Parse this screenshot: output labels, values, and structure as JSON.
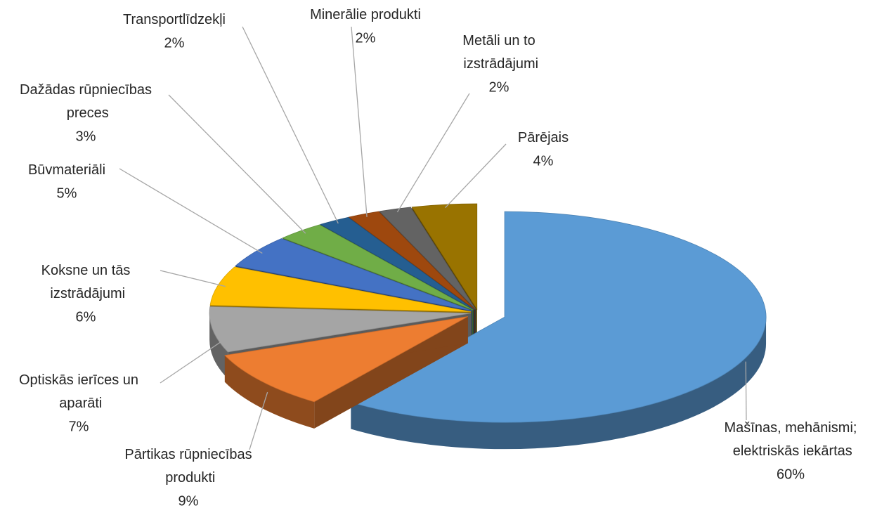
{
  "chart_data": {
    "type": "pie3d",
    "categories": [
      "Mašīnas, mehānismi; elektriskās iekārtas",
      "Pārtikas rūpniecības produkti",
      "Optiskās ierīces un aparāti",
      "Koksne un tās izstrādājumi",
      "Būvmateriāli",
      "Dažādas rūpniecības preces",
      "Transportlīdzekļi",
      "Minerālie produkti",
      "Metāli un to izstrādājumi",
      "Pārējais"
    ],
    "values": [
      60,
      9,
      7,
      6,
      5,
      3,
      2,
      2,
      2,
      4
    ],
    "value_labels": [
      "60%",
      "9%",
      "7%",
      "6%",
      "5%",
      "3%",
      "2%",
      "2%",
      "2%",
      "4%"
    ],
    "colors": [
      "#5b9bd5",
      "#ed7d31",
      "#a5a5a5",
      "#ffc000",
      "#4472c4",
      "#70ad47",
      "#255e91",
      "#9e480e",
      "#636363",
      "#997300"
    ]
  }
}
